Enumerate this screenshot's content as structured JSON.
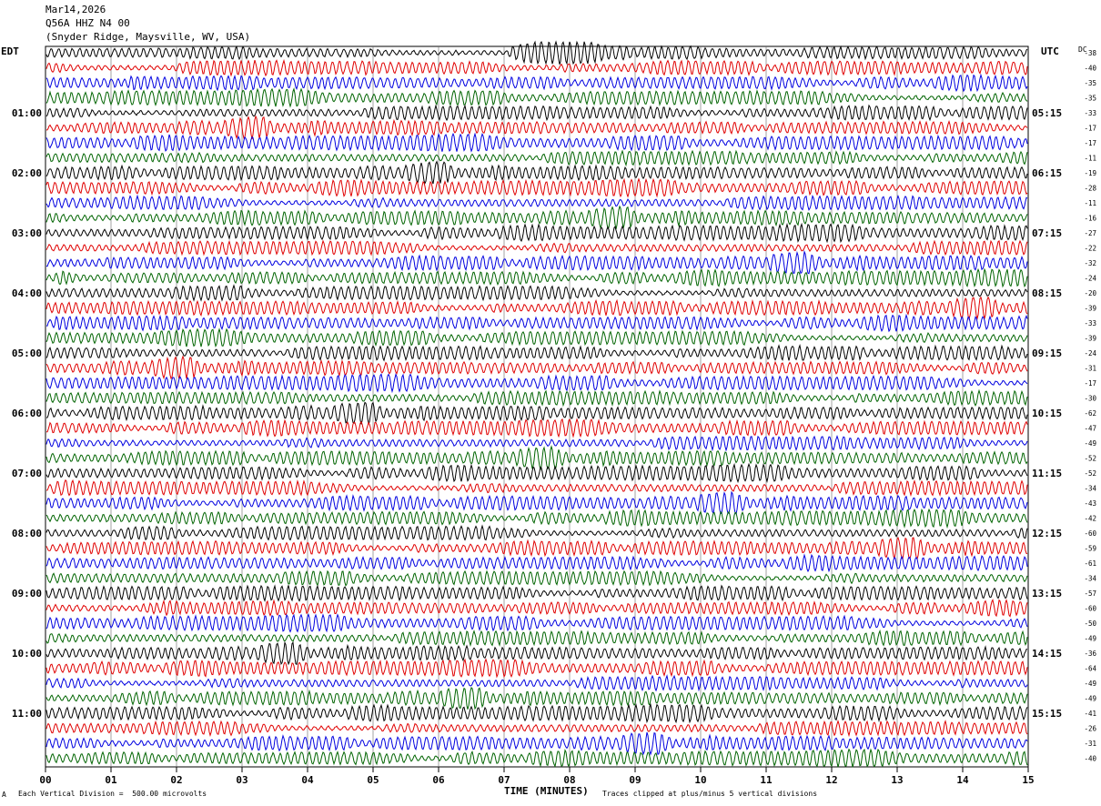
{
  "header": {
    "date": "Mar14,2026",
    "station": "Q56A HHZ N4 00",
    "location": "(Snyder Ridge, Maysville, WV, USA)"
  },
  "left_zone": "EDT",
  "right_zone": "UTC",
  "dc_label": "DC",
  "footer": {
    "scale": "Each Vertical Division =  500.00 microvolts",
    "xlabel": "TIME (MINUTES)",
    "clip": "Traces clipped at plus/minus 5 vertical divisions",
    "corner_mark": "A"
  },
  "trace_colors": [
    "#000000",
    "#e00000",
    "#0000e0",
    "#006400"
  ],
  "chart_data": {
    "type": "line",
    "title": "Q56A HHZ N4 00",
    "xlabel": "TIME (MINUTES)",
    "xlim": [
      0,
      15
    ],
    "x_ticks": [
      "00",
      "01",
      "02",
      "03",
      "04",
      "05",
      "06",
      "07",
      "08",
      "09",
      "10",
      "11",
      "12",
      "13",
      "14",
      "15"
    ],
    "trace_minutes": 15,
    "left_hour_labels": [
      "01:00",
      "02:00",
      "03:00",
      "04:00",
      "05:00",
      "06:00",
      "07:00",
      "08:00",
      "09:00",
      "10:00",
      "11:00"
    ],
    "right_hour_labels": [
      "05:15",
      "06:15",
      "07:15",
      "08:15",
      "09:15",
      "10:15",
      "11:15",
      "12:15",
      "13:15",
      "14:15",
      "15:15"
    ],
    "dc_offsets": [
      -38,
      -40,
      -35,
      -35,
      -33,
      -17,
      -17,
      -11,
      -19,
      -28,
      -11,
      -16,
      -27,
      -22,
      -32,
      -24,
      -20,
      -39,
      -33,
      -39,
      -24,
      -31,
      -17,
      -30,
      -62,
      -47,
      -49,
      -52,
      -52,
      -34,
      -43,
      -42,
      -60,
      -59,
      -61,
      -34,
      -57,
      -60,
      -50,
      -49,
      -36,
      -64,
      -49,
      -49,
      -41,
      -26,
      -31,
      -40
    ]
  }
}
